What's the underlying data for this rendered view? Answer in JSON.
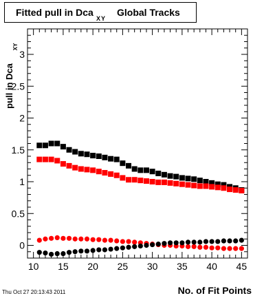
{
  "title": {
    "main": "Fitted pull in Dca",
    "subscript": "XY",
    "tail": "Global Tracks"
  },
  "ylabel": {
    "main": "pull in Dca",
    "subscript": "XY"
  },
  "xlabel": "No. of Fit Points",
  "timestamp": "Thu Oct 27 20:13:43 2011",
  "colors": {
    "black_series": "#000000",
    "red_series": "#ff0000"
  },
  "chart_data": {
    "type": "scatter",
    "xlim": [
      9,
      46
    ],
    "ylim": [
      -0.2,
      3.4
    ],
    "xticks": [
      10,
      15,
      20,
      25,
      30,
      35,
      40,
      45
    ],
    "yticks": [
      0,
      0.5,
      1,
      1.5,
      2,
      2.5,
      3
    ],
    "ytick_labels": [
      "0",
      "0.5",
      "1",
      "1.5",
      "2",
      "2.5",
      "3"
    ],
    "grid": false,
    "series": [
      {
        "marker": "square",
        "color": "#000000",
        "x": [
          11,
          12,
          13,
          14,
          15,
          16,
          17,
          18,
          19,
          20,
          21,
          22,
          23,
          24,
          25,
          26,
          27,
          28,
          29,
          30,
          31,
          32,
          33,
          34,
          35,
          36,
          37,
          38,
          39,
          40,
          41,
          42,
          43,
          44,
          45
        ],
        "y": [
          1.57,
          1.57,
          1.6,
          1.6,
          1.55,
          1.5,
          1.47,
          1.44,
          1.43,
          1.41,
          1.4,
          1.38,
          1.36,
          1.35,
          1.29,
          1.25,
          1.2,
          1.18,
          1.18,
          1.16,
          1.13,
          1.11,
          1.09,
          1.08,
          1.06,
          1.05,
          1.04,
          1.02,
          1.0,
          0.98,
          0.96,
          0.95,
          0.92,
          0.9,
          0.87
        ]
      },
      {
        "marker": "square",
        "color": "#ff0000",
        "x": [
          11,
          12,
          13,
          14,
          15,
          16,
          17,
          18,
          19,
          20,
          21,
          22,
          23,
          24,
          25,
          26,
          27,
          28,
          29,
          30,
          31,
          32,
          33,
          34,
          35,
          36,
          37,
          38,
          39,
          40,
          41,
          42,
          43,
          44,
          45
        ],
        "y": [
          1.35,
          1.35,
          1.35,
          1.33,
          1.28,
          1.25,
          1.22,
          1.2,
          1.19,
          1.18,
          1.16,
          1.14,
          1.12,
          1.1,
          1.06,
          1.03,
          1.03,
          1.02,
          1.01,
          1.0,
          0.99,
          0.99,
          0.98,
          0.97,
          0.96,
          0.95,
          0.94,
          0.93,
          0.93,
          0.92,
          0.91,
          0.9,
          0.88,
          0.87,
          0.86
        ]
      },
      {
        "marker": "circle",
        "color": "#ff0000",
        "x": [
          11,
          12,
          13,
          14,
          15,
          16,
          17,
          18,
          19,
          20,
          21,
          22,
          23,
          24,
          25,
          26,
          27,
          28,
          29,
          30,
          31,
          32,
          33,
          34,
          35,
          36,
          37,
          38,
          39,
          40,
          41,
          42,
          43,
          44,
          45
        ],
        "y": [
          0.08,
          0.1,
          0.11,
          0.12,
          0.11,
          0.11,
          0.1,
          0.1,
          0.1,
          0.09,
          0.09,
          0.08,
          0.08,
          0.07,
          0.06,
          0.06,
          0.05,
          0.04,
          0.03,
          0.02,
          0.01,
          0.0,
          0.0,
          -0.01,
          -0.01,
          -0.02,
          -0.02,
          -0.03,
          -0.03,
          -0.04,
          -0.04,
          -0.05,
          -0.05,
          -0.05,
          -0.05
        ]
      },
      {
        "marker": "circle",
        "color": "#000000",
        "x": [
          11,
          12,
          13,
          14,
          15,
          16,
          17,
          18,
          19,
          20,
          21,
          22,
          23,
          24,
          25,
          26,
          27,
          28,
          29,
          30,
          31,
          32,
          33,
          34,
          35,
          36,
          37,
          38,
          39,
          40,
          41,
          42,
          43,
          44,
          45
        ],
        "y": [
          -0.11,
          -0.12,
          -0.14,
          -0.13,
          -0.13,
          -0.11,
          -0.1,
          -0.09,
          -0.09,
          -0.08,
          -0.07,
          -0.07,
          -0.06,
          -0.05,
          -0.04,
          -0.03,
          -0.02,
          -0.01,
          0.0,
          0.01,
          0.02,
          0.03,
          0.04,
          0.04,
          0.04,
          0.05,
          0.05,
          0.05,
          0.06,
          0.06,
          0.06,
          0.07,
          0.07,
          0.07,
          0.08
        ]
      }
    ]
  }
}
